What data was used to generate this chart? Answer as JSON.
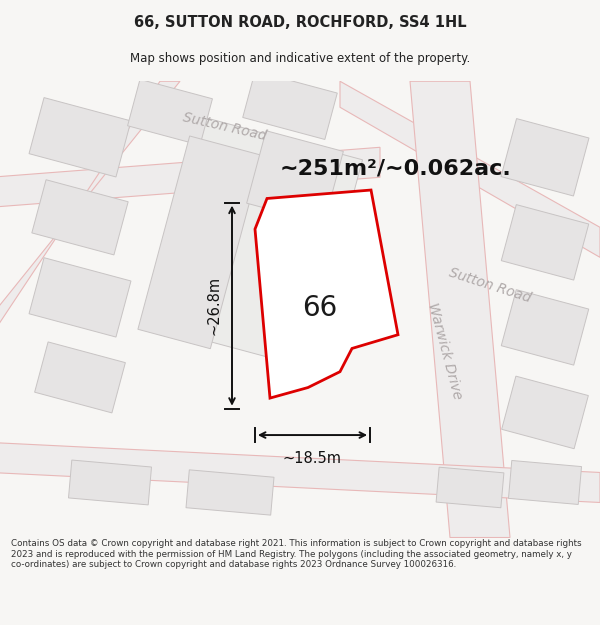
{
  "title": "66, SUTTON ROAD, ROCHFORD, SS4 1HL",
  "subtitle": "Map shows position and indicative extent of the property.",
  "area_text": "~251m²/~0.062ac.",
  "dim_width": "~18.5m",
  "dim_height": "~26.8m",
  "label_66": "66",
  "footer": "Contains OS data © Crown copyright and database right 2021. This information is subject to Crown copyright and database rights 2023 and is reproduced with the permission of HM Land Registry. The polygons (including the associated geometry, namely x, y co-ordinates) are subject to Crown copyright and database rights 2023 Ordnance Survey 100026316.",
  "bg_color": "#f7f6f4",
  "map_bg": "#f7f6f4",
  "road_line_color": "#e8b8b8",
  "building_fill": "#e6e4e4",
  "building_stroke": "#c8c4c4",
  "highlight_fill": "#ffffff",
  "highlight_stroke": "#dd0000",
  "dimension_color": "#111111",
  "street_label_color": "#b0aaaa",
  "footer_color": "#333333",
  "title_color": "#222222",
  "road_surface": "#eeecec"
}
